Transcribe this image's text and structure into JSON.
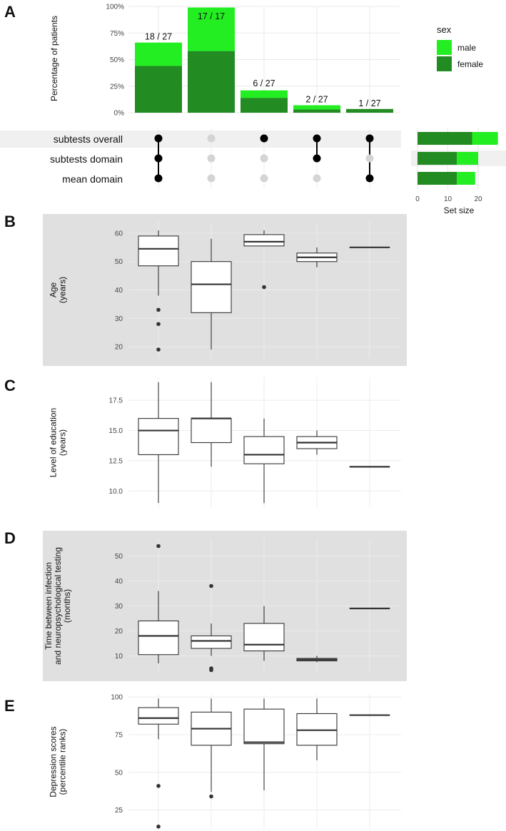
{
  "panels": {
    "A": "A",
    "B": "B",
    "C": "C",
    "D": "D",
    "E": "E"
  },
  "colors": {
    "male": "#22ee22",
    "female": "#228b22",
    "dot_on": "#000000",
    "dot_off": "#d4d4d4",
    "panel_bg": "#e0e0e0"
  },
  "chart_data": [
    {
      "id": "A-bars",
      "type": "bar",
      "stacked": true,
      "categories": [
        "g1",
        "g2",
        "g3",
        "g4",
        "g5"
      ],
      "series": [
        {
          "name": "female",
          "values": [
            44,
            58,
            14,
            3,
            3.5
          ]
        },
        {
          "name": "male",
          "values": [
            22,
            41,
            7,
            4,
            0
          ]
        }
      ],
      "total_values": [
        66,
        100,
        22,
        7,
        3.5
      ],
      "bar_labels": [
        "18 / 27",
        "17 / 17",
        "6 / 27",
        "2 / 27",
        "1 / 27"
      ],
      "ylabel": "Percentage of patients",
      "yticks": [
        "0%",
        "25%",
        "50%",
        "75%",
        "100%"
      ],
      "ytick_values": [
        0,
        25,
        50,
        75,
        100
      ],
      "ylim": [
        0,
        100
      ],
      "legend": {
        "title": "sex",
        "entries": [
          "male",
          "female"
        ]
      }
    },
    {
      "id": "A-matrix",
      "type": "table",
      "rows": [
        "subtests overall",
        "subtests domain",
        "mean domain"
      ],
      "membership": [
        [
          1,
          1,
          1
        ],
        [
          0,
          0,
          0
        ],
        [
          1,
          0,
          0
        ],
        [
          1,
          1,
          0
        ],
        [
          1,
          0,
          1
        ]
      ]
    },
    {
      "id": "A-setsize",
      "type": "bar",
      "orientation": "horizontal",
      "categories": [
        "subtests overall",
        "subtests domain",
        "mean domain"
      ],
      "series": [
        {
          "name": "female",
          "values": [
            18,
            13,
            13
          ]
        },
        {
          "name": "male",
          "values": [
            8.5,
            7,
            6
          ]
        }
      ],
      "xlabel": "Set size",
      "xticks": [
        "0",
        "10",
        "20"
      ],
      "xtick_values": [
        0,
        10,
        20
      ],
      "xlim": [
        0,
        28
      ]
    },
    {
      "id": "B",
      "type": "box",
      "ylabel": "Age",
      "ylabel2": "(years)",
      "ylim": [
        16,
        64
      ],
      "yticks": [
        "20",
        "30",
        "40",
        "50",
        "60"
      ],
      "ytick_values": [
        20,
        30,
        40,
        50,
        60
      ],
      "boxes": [
        {
          "q1": 48.5,
          "median": 54.5,
          "q3": 59,
          "low": 38,
          "high": 61,
          "outliers": [
            33,
            28,
            19
          ]
        },
        {
          "q1": 32,
          "median": 42,
          "q3": 50,
          "low": 19,
          "high": 58,
          "outliers": []
        },
        {
          "q1": 55.5,
          "median": 57,
          "q3": 59.5,
          "low": 55.5,
          "high": 61,
          "outliers": [
            41
          ]
        },
        {
          "q1": 50,
          "median": 51.5,
          "q3": 53,
          "low": 48,
          "high": 55,
          "outliers": []
        },
        {
          "q1": 55,
          "median": 55,
          "q3": 55,
          "low": 55,
          "high": 55,
          "outliers": []
        }
      ]
    },
    {
      "id": "C",
      "type": "box",
      "ylabel": "Level of education",
      "ylabel2": "(years)",
      "ylim": [
        8.6,
        19.4
      ],
      "yticks": [
        "10.0",
        "12.5",
        "15.0",
        "17.5"
      ],
      "ytick_values": [
        10,
        12.5,
        15,
        17.5
      ],
      "boxes": [
        {
          "q1": 13,
          "median": 15,
          "q3": 16,
          "low": 9,
          "high": 19,
          "outliers": []
        },
        {
          "q1": 14,
          "median": 16,
          "q3": 16,
          "low": 12,
          "high": 19,
          "outliers": []
        },
        {
          "q1": 12.25,
          "median": 13,
          "q3": 14.5,
          "low": 9,
          "high": 16,
          "outliers": []
        },
        {
          "q1": 13.5,
          "median": 14,
          "q3": 14.5,
          "low": 13,
          "high": 15,
          "outliers": []
        },
        {
          "q1": 12,
          "median": 12,
          "q3": 12,
          "low": 12,
          "high": 12,
          "outliers": []
        }
      ]
    },
    {
      "id": "D",
      "type": "box",
      "ylabel": "Time between infection",
      "ylabel2": "and neuropsychological testing",
      "ylabel3": "(months)",
      "ylim": [
        3,
        57
      ],
      "yticks": [
        "10",
        "20",
        "30",
        "40",
        "50"
      ],
      "ytick_values": [
        10,
        20,
        30,
        40,
        50
      ],
      "boxes": [
        {
          "q1": 10.5,
          "median": 18,
          "q3": 24,
          "low": 7,
          "high": 36,
          "outliers": [
            54
          ]
        },
        {
          "q1": 13,
          "median": 16,
          "q3": 18,
          "low": 10,
          "high": 23,
          "outliers": [
            38,
            5,
            4.3
          ]
        },
        {
          "q1": 12,
          "median": 14.5,
          "q3": 23,
          "low": 8,
          "high": 30,
          "outliers": []
        },
        {
          "q1": 8,
          "median": 8.5,
          "q3": 9,
          "low": 7.5,
          "high": 10,
          "outliers": []
        },
        {
          "q1": 29,
          "median": 29,
          "q3": 29,
          "low": 29,
          "high": 29,
          "outliers": []
        }
      ]
    },
    {
      "id": "E",
      "type": "box",
      "ylabel": "Depression scores",
      "ylabel2": "(percentile ranks)",
      "ylim": [
        12,
        102
      ],
      "yticks": [
        "25",
        "50",
        "75",
        "100"
      ],
      "ytick_values": [
        25,
        50,
        75,
        100
      ],
      "boxes": [
        {
          "q1": 82,
          "median": 86,
          "q3": 93,
          "low": 72,
          "high": 99,
          "outliers": [
            41,
            14
          ]
        },
        {
          "q1": 68,
          "median": 79,
          "q3": 90,
          "low": 37,
          "high": 99,
          "outliers": [
            34
          ]
        },
        {
          "q1": 69,
          "median": 70,
          "q3": 92,
          "low": 38,
          "high": 99,
          "outliers": []
        },
        {
          "q1": 68,
          "median": 78,
          "q3": 89,
          "low": 58,
          "high": 99,
          "outliers": []
        },
        {
          "q1": 88,
          "median": 88,
          "q3": 88,
          "low": 88,
          "high": 88,
          "outliers": []
        }
      ]
    }
  ]
}
